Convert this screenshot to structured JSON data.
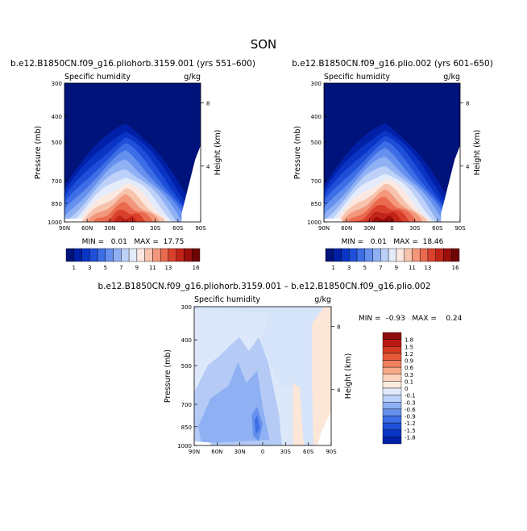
{
  "season_title": "SON",
  "chart_data": [
    {
      "type": "heatmap",
      "title": "b.e12.B1850CN.f09_g16.pliohorb.3159.001 (yrs 551–600)",
      "subtitle_left": "Specific humidity",
      "subtitle_right": "g/kg",
      "ylabel": "Pressure (mb)",
      "y2label": "Height (km)",
      "x_ticks": [
        "90N",
        "60N",
        "30N",
        "0",
        "30S",
        "60S",
        "90S"
      ],
      "y_ticks": [
        "300",
        "400",
        "500",
        "700",
        "850",
        "1000"
      ],
      "y2_ticks": [
        "8",
        "4"
      ],
      "stats": "MIN =   0.01   MAX =  17.75",
      "max_value": 17.75
    },
    {
      "type": "heatmap",
      "title": "b.e12.B1850CN.f09_g16.plio.002 (yrs 601–650)",
      "subtitle_left": "Specific humidity",
      "subtitle_right": "g/kg",
      "ylabel": "Pressure (mb)",
      "y2label": "Height (km)",
      "x_ticks": [
        "90N",
        "60N",
        "30N",
        "0",
        "30S",
        "60S",
        "90S"
      ],
      "y_ticks": [
        "300",
        "400",
        "500",
        "700",
        "850",
        "1000"
      ],
      "y2_ticks": [
        "8",
        "4"
      ],
      "stats": "MIN =   0.01   MAX =  18.46",
      "max_value": 18.46
    },
    {
      "type": "heatmap",
      "title": "b.e12.B1850CN.f09_g16.pliohorb.3159.001 – b.e12.B1850CN.f09_g16.plio.002",
      "subtitle_left": "Specific humidity",
      "subtitle_right": "g/kg",
      "ylabel": "Pressure (mb)",
      "y2label": "Height (km)",
      "x_ticks": [
        "90N",
        "60N",
        "30N",
        "0",
        "30S",
        "60S",
        "90S"
      ],
      "y_ticks": [
        "300",
        "400",
        "500",
        "700",
        "850",
        "1000"
      ],
      "y2_ticks": [
        "8",
        "4"
      ],
      "stats": "MIN =  –0.93   MAX =    0.24"
    }
  ],
  "colorbar_top": {
    "labels": [
      "1",
      "3",
      "5",
      "7",
      "9",
      "11",
      "13",
      "16"
    ],
    "colors": [
      "#00137a",
      "#0020a8",
      "#0a34c4",
      "#1f4fd8",
      "#3e6ee6",
      "#6590ee",
      "#8fb1f4",
      "#bcd0f8",
      "#e4ecfb",
      "#fbe8e1",
      "#f7c3ad",
      "#f2977b",
      "#ea6a4f",
      "#d9412c",
      "#c12419",
      "#9c0e0c",
      "#6e0505"
    ]
  },
  "colorbar_diff": {
    "labels": [
      "1.8",
      "1.5",
      "1.2",
      "0.9",
      "0.6",
      "0.3",
      "0.1",
      "0",
      "-0.1",
      "-0.3",
      "-0.6",
      "-0.9",
      "-1.2",
      "-1.5",
      "-1.8"
    ],
    "colors": [
      "#8e0c0c",
      "#b81912",
      "#d33a22",
      "#e55a39",
      "#f0805c",
      "#f6aa88",
      "#fad3bd",
      "#fdebe0",
      "#e1ebfb",
      "#bcd2f8",
      "#8fb1f4",
      "#6590ee",
      "#3e6ee6",
      "#1f4fd8",
      "#0a34c4",
      "#0020a8"
    ]
  }
}
